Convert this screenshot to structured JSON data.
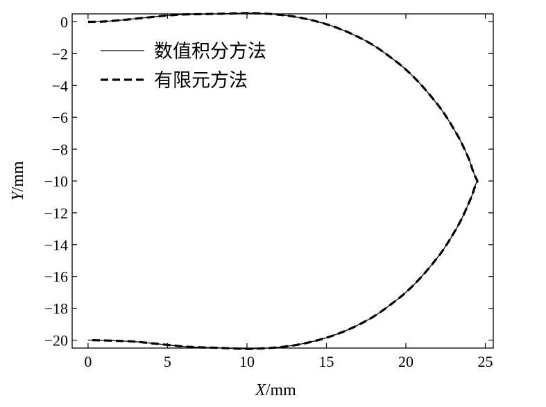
{
  "chart_data": {
    "type": "line",
    "xlabel": {
      "var": "X",
      "unit": "/mm"
    },
    "ylabel": {
      "var": "Y",
      "unit": "/mm"
    },
    "xlim": [
      -1,
      25.5
    ],
    "ylim": [
      -20.5,
      0.5
    ],
    "xticks": [
      0,
      5,
      10,
      15,
      20,
      25
    ],
    "yticks": [
      0,
      -2,
      -4,
      -6,
      -8,
      -10,
      -12,
      -14,
      -16,
      -18,
      -20
    ],
    "grid": false,
    "legend_position": "top-left",
    "series": [
      {
        "name": "数值积分方法",
        "style": "solid",
        "color": "#000000",
        "x": [
          0,
          1,
          2,
          3,
          4,
          5,
          6,
          7,
          8,
          9,
          10,
          11,
          12,
          13,
          14,
          15,
          16,
          17,
          18,
          19,
          20,
          21,
          22,
          22.5,
          23,
          23.5,
          24,
          24.2,
          24.4,
          24.5,
          24.4,
          24.2,
          24,
          23.5,
          23,
          22.5,
          22,
          21,
          20,
          19,
          18,
          17,
          16,
          15,
          14,
          13,
          12,
          11,
          10,
          9,
          8,
          7,
          6,
          5,
          4,
          3,
          2,
          1,
          0
        ],
        "y": [
          0,
          0.02,
          0.1,
          0.2,
          0.3,
          0.4,
          0.46,
          0.48,
          0.5,
          0.52,
          0.55,
          0.52,
          0.45,
          0.32,
          0.12,
          -0.15,
          -0.5,
          -0.95,
          -1.5,
          -2.2,
          -3.0,
          -4.0,
          -5.2,
          -5.9,
          -6.7,
          -7.6,
          -8.7,
          -9.3,
          -9.8,
          -10.0,
          -10.2,
          -10.8,
          -11.3,
          -12.4,
          -13.3,
          -14.1,
          -14.8,
          -16.0,
          -17.0,
          -17.8,
          -18.5,
          -19.05,
          -19.5,
          -19.85,
          -20.12,
          -20.32,
          -20.45,
          -20.52,
          -20.55,
          -20.52,
          -20.48,
          -20.45,
          -20.4,
          -20.3,
          -20.2,
          -20.1,
          -20.05,
          -20.02,
          -20.0
        ]
      },
      {
        "name": "有限元方法",
        "style": "dashed",
        "color": "#000000",
        "x": [
          0,
          1,
          2,
          3,
          4,
          5,
          6,
          7,
          8,
          9,
          10,
          11,
          12,
          13,
          14,
          15,
          16,
          17,
          18,
          19,
          20,
          21,
          22,
          22.5,
          23,
          23.5,
          24,
          24.2,
          24.4,
          24.5,
          24.4,
          24.2,
          24,
          23.5,
          23,
          22.5,
          22,
          21,
          20,
          19,
          18,
          17,
          16,
          15,
          14,
          13,
          12,
          11,
          10,
          9,
          8,
          7,
          6,
          5,
          4,
          3,
          2,
          1,
          0
        ],
        "y": [
          0,
          0.02,
          0.1,
          0.2,
          0.3,
          0.4,
          0.46,
          0.48,
          0.5,
          0.52,
          0.55,
          0.52,
          0.45,
          0.32,
          0.12,
          -0.15,
          -0.5,
          -0.95,
          -1.5,
          -2.2,
          -3.0,
          -4.0,
          -5.2,
          -5.9,
          -6.7,
          -7.6,
          -8.7,
          -9.3,
          -9.8,
          -10.0,
          -10.2,
          -10.8,
          -11.3,
          -12.4,
          -13.3,
          -14.1,
          -14.8,
          -16.0,
          -17.0,
          -17.8,
          -18.5,
          -19.05,
          -19.5,
          -19.85,
          -20.12,
          -20.32,
          -20.45,
          -20.52,
          -20.55,
          -20.52,
          -20.48,
          -20.45,
          -20.4,
          -20.3,
          -20.2,
          -20.1,
          -20.05,
          -20.02,
          -20.0
        ]
      }
    ]
  }
}
